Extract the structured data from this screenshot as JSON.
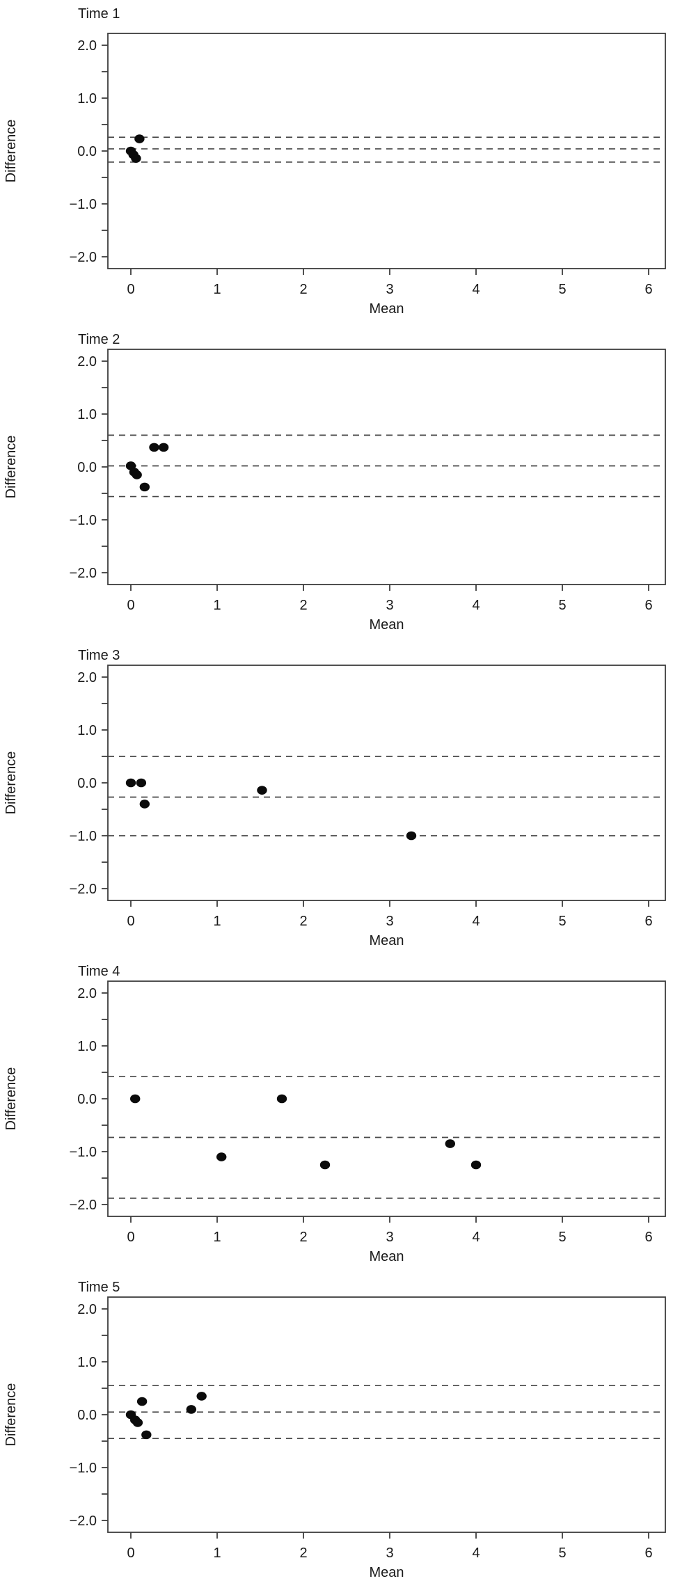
{
  "figure": {
    "description": "Bland-Altman plots of difference versus mean at five time points",
    "background": "#ffffff"
  },
  "styles": {
    "axis_color": "#3d3d3d",
    "dash_color": "#474747",
    "point_color": "#0b0b0b",
    "text_color": "#1a1a1a"
  },
  "chart_data": [
    {
      "type": "scatter",
      "title": "Time 1",
      "xlabel": "Mean",
      "ylabel": "Difference",
      "xlim": [
        -0.27,
        6.2
      ],
      "ylim": [
        -2.25,
        2.25
      ],
      "x_ticks": [
        0,
        1,
        2,
        3,
        4,
        5,
        6
      ],
      "y_ticks_labeled": [
        2.0,
        1.0,
        0.0,
        -1.0,
        -2.0
      ],
      "y_ticks_minor": [
        1.5,
        0.5,
        -0.5,
        -1.5
      ],
      "grid": false,
      "lines": {
        "upper_loa": 0.26,
        "mean": 0.04,
        "lower_loa": -0.21
      },
      "points": [
        {
          "x": 0.0,
          "y": 0.0
        },
        {
          "x": 0.03,
          "y": -0.07
        },
        {
          "x": 0.06,
          "y": -0.14
        },
        {
          "x": 0.1,
          "y": 0.23
        }
      ]
    },
    {
      "type": "scatter",
      "title": "Time 2",
      "xlabel": "Mean",
      "ylabel": "Difference",
      "xlim": [
        -0.27,
        6.2
      ],
      "ylim": [
        -2.25,
        2.25
      ],
      "x_ticks": [
        0,
        1,
        2,
        3,
        4,
        5,
        6
      ],
      "y_ticks_labeled": [
        2.0,
        1.0,
        0.0,
        -1.0,
        -2.0
      ],
      "y_ticks_minor": [
        1.5,
        0.5,
        -0.5,
        -1.5
      ],
      "grid": false,
      "lines": {
        "upper_loa": 0.6,
        "mean": 0.02,
        "lower_loa": -0.56
      },
      "points": [
        {
          "x": 0.0,
          "y": 0.02
        },
        {
          "x": 0.04,
          "y": -0.1
        },
        {
          "x": 0.07,
          "y": -0.15
        },
        {
          "x": 0.16,
          "y": -0.38
        },
        {
          "x": 0.27,
          "y": 0.37
        },
        {
          "x": 0.38,
          "y": 0.37
        }
      ]
    },
    {
      "type": "scatter",
      "title": "Time 3",
      "xlabel": "Mean",
      "ylabel": "Difference",
      "xlim": [
        -0.27,
        6.2
      ],
      "ylim": [
        -2.25,
        2.25
      ],
      "x_ticks": [
        0,
        1,
        2,
        3,
        4,
        5,
        6
      ],
      "y_ticks_labeled": [
        2.0,
        1.0,
        0.0,
        -1.0,
        -2.0
      ],
      "y_ticks_minor": [
        1.5,
        0.5,
        -0.5,
        -1.5
      ],
      "grid": false,
      "lines": {
        "upper_loa": 0.5,
        "mean": -0.27,
        "lower_loa": -1.0
      },
      "points": [
        {
          "x": 0.0,
          "y": 0.0
        },
        {
          "x": 0.12,
          "y": 0.0
        },
        {
          "x": 0.16,
          "y": -0.4
        },
        {
          "x": 1.52,
          "y": -0.14
        },
        {
          "x": 3.25,
          "y": -1.0
        }
      ]
    },
    {
      "type": "scatter",
      "title": "Time 4",
      "xlabel": "Mean",
      "ylabel": "Difference",
      "xlim": [
        -0.27,
        6.2
      ],
      "ylim": [
        -2.25,
        2.25
      ],
      "x_ticks": [
        0,
        1,
        2,
        3,
        4,
        5,
        6
      ],
      "y_ticks_labeled": [
        2.0,
        1.0,
        0.0,
        -1.0,
        -2.0
      ],
      "y_ticks_minor": [
        1.5,
        0.5,
        -0.5,
        -1.5
      ],
      "grid": false,
      "lines": {
        "upper_loa": 0.42,
        "mean": -0.73,
        "lower_loa": -1.88
      },
      "points": [
        {
          "x": 0.05,
          "y": 0.0
        },
        {
          "x": 1.05,
          "y": -1.1
        },
        {
          "x": 1.75,
          "y": 0.0
        },
        {
          "x": 2.25,
          "y": -1.25
        },
        {
          "x": 3.7,
          "y": -0.85
        },
        {
          "x": 4.0,
          "y": -1.25
        }
      ]
    },
    {
      "type": "scatter",
      "title": "Time 5",
      "xlabel": "Mean",
      "ylabel": "Difference",
      "xlim": [
        -0.27,
        6.2
      ],
      "ylim": [
        -2.25,
        2.25
      ],
      "x_ticks": [
        0,
        1,
        2,
        3,
        4,
        5,
        6
      ],
      "y_ticks_labeled": [
        2.0,
        1.0,
        0.0,
        -1.0,
        -2.0
      ],
      "y_ticks_minor": [
        1.5,
        0.5,
        -0.5,
        -1.5
      ],
      "grid": false,
      "lines": {
        "upper_loa": 0.55,
        "mean": 0.05,
        "lower_loa": -0.45
      },
      "points": [
        {
          "x": 0.0,
          "y": 0.0
        },
        {
          "x": 0.05,
          "y": -0.1
        },
        {
          "x": 0.08,
          "y": -0.15
        },
        {
          "x": 0.13,
          "y": 0.25
        },
        {
          "x": 0.18,
          "y": -0.38
        },
        {
          "x": 0.7,
          "y": 0.1
        },
        {
          "x": 0.82,
          "y": 0.35
        }
      ]
    }
  ]
}
